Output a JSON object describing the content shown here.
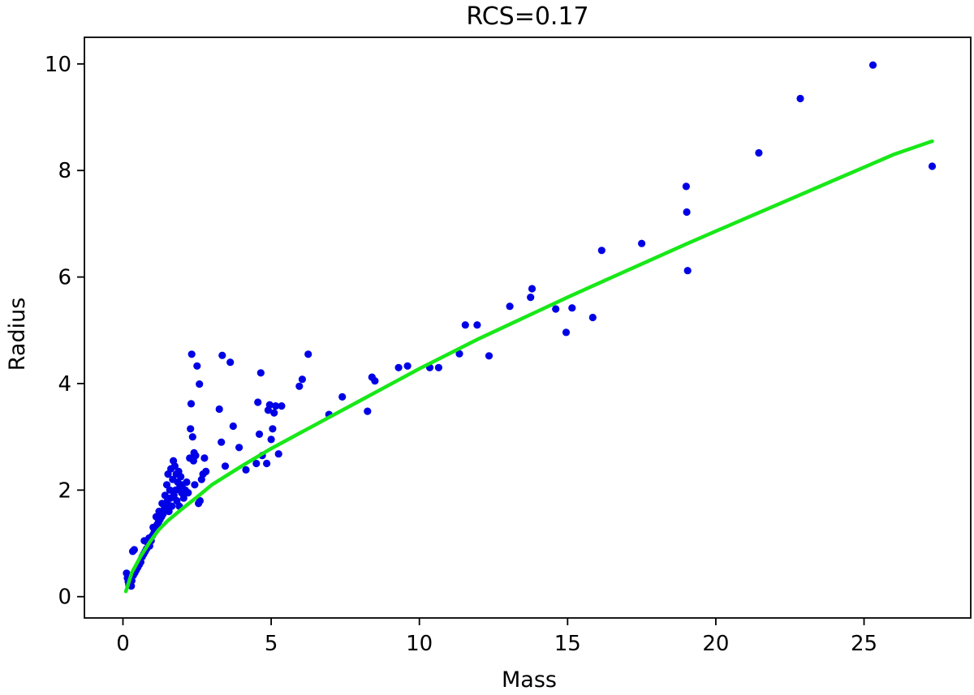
{
  "chart_data": {
    "type": "scatter",
    "title": "RCS=0.17",
    "xlabel": "Mass",
    "ylabel": "Radius",
    "xlim": [
      -1.3,
      28.6
    ],
    "ylim": [
      -0.4,
      10.5
    ],
    "xticks": [
      0,
      5,
      10,
      15,
      20,
      25
    ],
    "yticks": [
      0,
      2,
      4,
      6,
      8,
      10
    ],
    "grid": false,
    "legend": "none",
    "series": [
      {
        "type": "scatter",
        "color": "#0000e6",
        "points": [
          [
            0.12,
            0.44
          ],
          [
            0.15,
            0.35
          ],
          [
            0.18,
            0.28
          ],
          [
            0.2,
            0.22
          ],
          [
            0.22,
            0.3
          ],
          [
            0.25,
            0.25
          ],
          [
            0.28,
            0.2
          ],
          [
            0.3,
            0.3
          ],
          [
            0.33,
            0.85
          ],
          [
            0.38,
            0.88
          ],
          [
            0.35,
            0.4
          ],
          [
            0.4,
            0.45
          ],
          [
            0.45,
            0.5
          ],
          [
            0.5,
            0.55
          ],
          [
            0.55,
            0.6
          ],
          [
            0.6,
            0.65
          ],
          [
            0.65,
            0.75
          ],
          [
            0.7,
            0.8
          ],
          [
            0.72,
            1.05
          ],
          [
            0.75,
            0.85
          ],
          [
            0.8,
            0.9
          ],
          [
            0.85,
            1.0
          ],
          [
            0.88,
            1.1
          ],
          [
            0.9,
            0.95
          ],
          [
            0.95,
            1.05
          ],
          [
            1.0,
            1.15
          ],
          [
            1.02,
            1.3
          ],
          [
            1.05,
            1.2
          ],
          [
            1.1,
            1.25
          ],
          [
            1.12,
            1.5
          ],
          [
            1.15,
            1.35
          ],
          [
            1.2,
            1.4
          ],
          [
            1.22,
            1.6
          ],
          [
            1.25,
            1.45
          ],
          [
            1.3,
            1.5
          ],
          [
            1.32,
            1.75
          ],
          [
            1.35,
            1.55
          ],
          [
            1.4,
            1.65
          ],
          [
            1.42,
            1.9
          ],
          [
            1.45,
            1.7
          ],
          [
            1.48,
            2.1
          ],
          [
            1.5,
            1.8
          ],
          [
            1.52,
            2.3
          ],
          [
            1.55,
            1.6
          ],
          [
            1.58,
            2.0
          ],
          [
            1.6,
            1.85
          ],
          [
            1.62,
            2.4
          ],
          [
            1.65,
            1.7
          ],
          [
            1.68,
            2.2
          ],
          [
            1.7,
            2.55
          ],
          [
            1.72,
            1.9
          ],
          [
            1.75,
            2.45
          ],
          [
            1.78,
            2.0
          ],
          [
            1.8,
            2.3
          ],
          [
            1.82,
            1.8
          ],
          [
            1.85,
            2.15
          ],
          [
            1.88,
            2.35
          ],
          [
            1.9,
            1.7
          ],
          [
            1.92,
            2.05
          ],
          [
            1.95,
            2.25
          ],
          [
            1.98,
            1.95
          ],
          [
            2.0,
            2.1
          ],
          [
            2.05,
            1.85
          ],
          [
            2.1,
            2.0
          ],
          [
            2.15,
            2.15
          ],
          [
            2.2,
            1.95
          ],
          [
            2.25,
            2.6
          ],
          [
            2.28,
            3.15
          ],
          [
            2.3,
            3.62
          ],
          [
            2.32,
            4.55
          ],
          [
            2.35,
            3.0
          ],
          [
            2.38,
            2.55
          ],
          [
            2.4,
            2.7
          ],
          [
            2.42,
            2.1
          ],
          [
            2.45,
            2.65
          ],
          [
            2.5,
            4.33
          ],
          [
            2.55,
            1.75
          ],
          [
            2.58,
            3.99
          ],
          [
            2.6,
            1.8
          ],
          [
            2.65,
            2.2
          ],
          [
            2.7,
            2.3
          ],
          [
            2.75,
            2.6
          ],
          [
            2.8,
            2.35
          ],
          [
            3.25,
            3.52
          ],
          [
            3.32,
            2.9
          ],
          [
            3.35,
            4.53
          ],
          [
            3.45,
            2.45
          ],
          [
            3.62,
            4.4
          ],
          [
            3.72,
            3.2
          ],
          [
            3.92,
            2.8
          ],
          [
            4.15,
            2.38
          ],
          [
            4.5,
            2.5
          ],
          [
            4.55,
            3.65
          ],
          [
            4.6,
            3.05
          ],
          [
            4.65,
            4.2
          ],
          [
            4.7,
            2.65
          ],
          [
            4.85,
            2.5
          ],
          [
            4.9,
            3.5
          ],
          [
            4.95,
            3.6
          ],
          [
            5.0,
            2.95
          ],
          [
            5.05,
            3.15
          ],
          [
            5.1,
            3.45
          ],
          [
            5.15,
            3.58
          ],
          [
            5.25,
            2.68
          ],
          [
            5.35,
            3.58
          ],
          [
            5.95,
            3.95
          ],
          [
            6.05,
            4.08
          ],
          [
            6.25,
            4.55
          ],
          [
            6.95,
            3.42
          ],
          [
            7.4,
            3.75
          ],
          [
            8.25,
            3.48
          ],
          [
            8.4,
            4.12
          ],
          [
            8.5,
            4.05
          ],
          [
            9.3,
            4.3
          ],
          [
            9.6,
            4.33
          ],
          [
            10.35,
            4.3
          ],
          [
            10.65,
            4.3
          ],
          [
            11.35,
            4.56
          ],
          [
            11.55,
            5.1
          ],
          [
            11.95,
            5.1
          ],
          [
            12.35,
            4.52
          ],
          [
            13.05,
            5.45
          ],
          [
            13.75,
            5.62
          ],
          [
            13.8,
            5.78
          ],
          [
            14.6,
            5.4
          ],
          [
            14.95,
            4.96
          ],
          [
            15.15,
            5.42
          ],
          [
            15.85,
            5.24
          ],
          [
            16.15,
            6.5
          ],
          [
            17.5,
            6.63
          ],
          [
            19.0,
            7.7
          ],
          [
            19.02,
            7.22
          ],
          [
            19.05,
            6.12
          ],
          [
            21.45,
            8.33
          ],
          [
            22.85,
            9.35
          ],
          [
            25.3,
            9.98
          ],
          [
            27.3,
            8.08
          ]
        ]
      },
      {
        "type": "line",
        "color": "#18e818",
        "x": [
          0.1,
          0.3,
          0.6,
          0.9,
          1.2,
          1.5,
          2.0,
          2.5,
          3.0,
          4.0,
          5.0,
          6.0,
          7.0,
          8.0,
          9.0,
          10.0,
          11.0,
          12.0,
          13.0,
          14.0,
          15.0,
          16.0,
          17.0,
          18.0,
          19.0,
          20.0,
          21.0,
          22.0,
          23.0,
          24.0,
          25.0,
          26.0,
          27.3
        ],
        "y": [
          0.1,
          0.45,
          0.76,
          1.02,
          1.25,
          1.42,
          1.65,
          1.87,
          2.1,
          2.45,
          2.78,
          3.08,
          3.38,
          3.68,
          3.98,
          4.28,
          4.56,
          4.84,
          5.1,
          5.36,
          5.62,
          5.87,
          6.12,
          6.37,
          6.62,
          6.86,
          7.1,
          7.34,
          7.58,
          7.82,
          8.06,
          8.3,
          8.55
        ]
      }
    ]
  }
}
